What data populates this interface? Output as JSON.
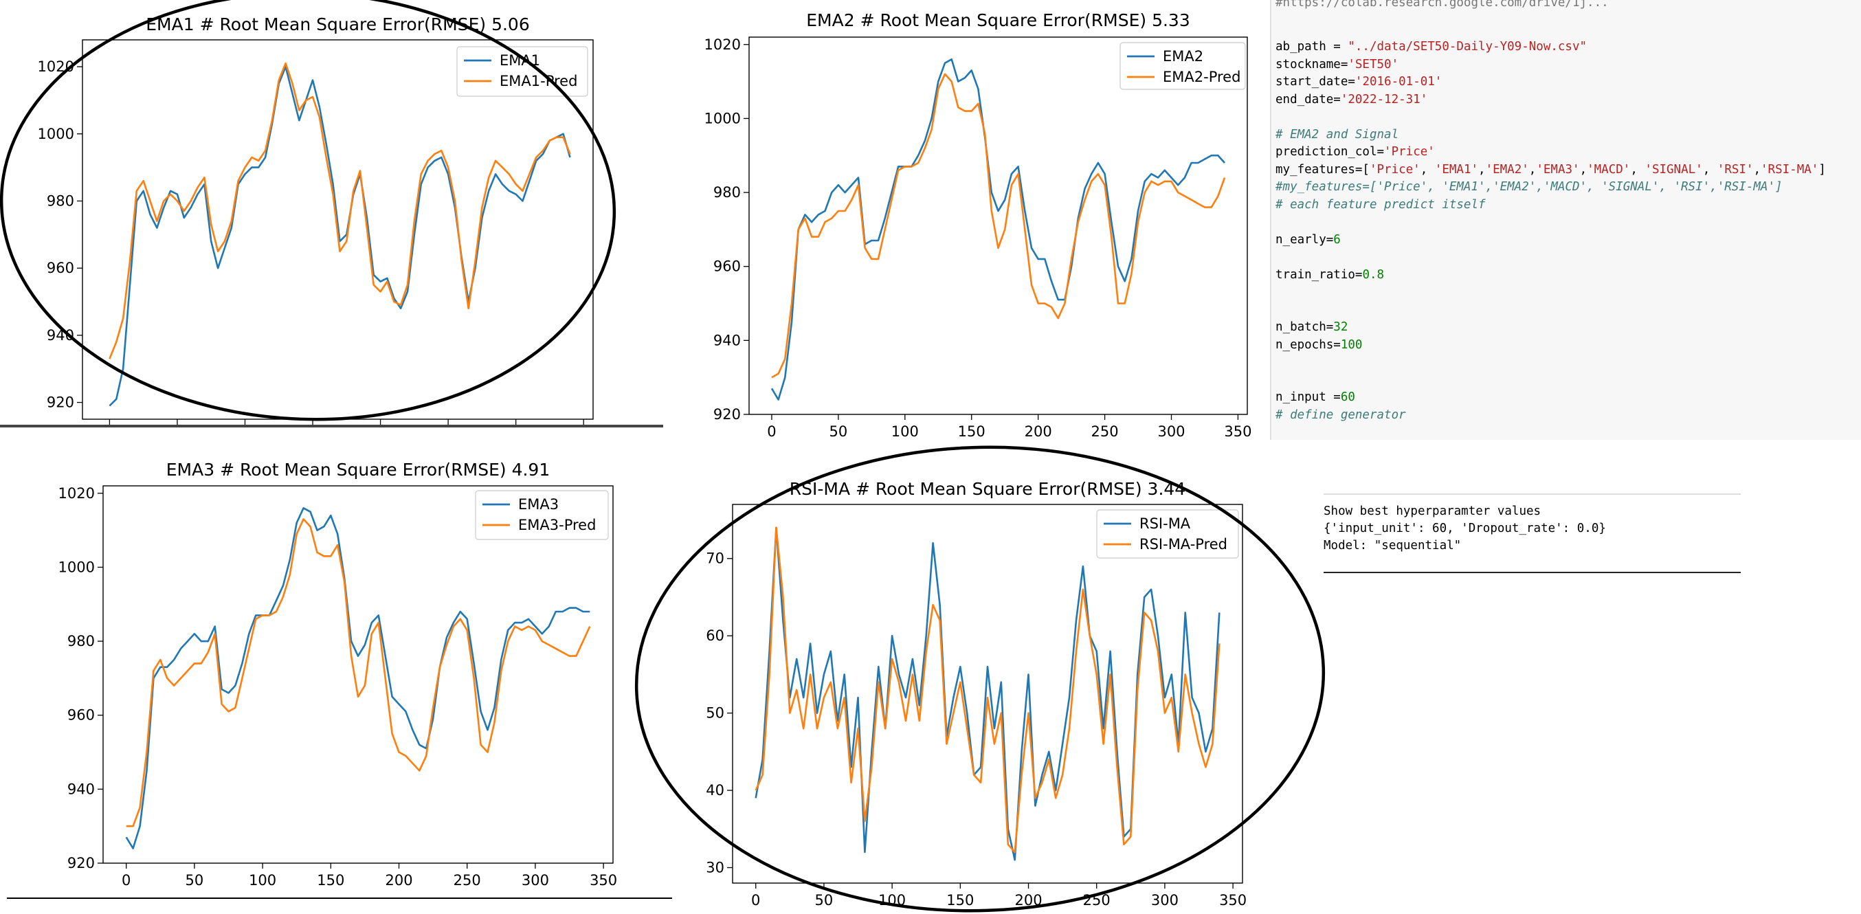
{
  "chart_data": [
    {
      "type": "line",
      "title": "EMA1 # Root Mean Square Error(RMSE) 5.06",
      "x": [
        0,
        5,
        10,
        15,
        20,
        25,
        30,
        35,
        40,
        45,
        50,
        55,
        60,
        65,
        70,
        75,
        80,
        85,
        90,
        95,
        100,
        105,
        110,
        115,
        120,
        125,
        130,
        135,
        140,
        145,
        150,
        155,
        160,
        165,
        170,
        175,
        180,
        185,
        190,
        195,
        200,
        205,
        210,
        215,
        220,
        225,
        230,
        235,
        240,
        245,
        250,
        255,
        260,
        265,
        270,
        275,
        280,
        285,
        290,
        295,
        300,
        305,
        310,
        315,
        320,
        325,
        330,
        335,
        340
      ],
      "series": [
        {
          "name": "EMA1",
          "color": "#1f77b4",
          "values": [
            919,
            921,
            930,
            955,
            980,
            983,
            976,
            972,
            978,
            983,
            982,
            975,
            978,
            982,
            985,
            968,
            960,
            966,
            972,
            985,
            988,
            990,
            990,
            993,
            1003,
            1015,
            1020,
            1012,
            1004,
            1010,
            1016,
            1008,
            997,
            985,
            968,
            970,
            982,
            988,
            975,
            958,
            956,
            957,
            951,
            948,
            953,
            970,
            985,
            990,
            992,
            993,
            988,
            978,
            963,
            950,
            960,
            975,
            983,
            988,
            985,
            983,
            982,
            980,
            986,
            992,
            994,
            998,
            999,
            1000,
            993
          ]
        },
        {
          "name": "EMA1-Pred",
          "color": "#ff7f0e",
          "values": [
            933,
            938,
            945,
            962,
            983,
            986,
            980,
            974,
            980,
            982,
            980,
            977,
            980,
            984,
            987,
            973,
            965,
            968,
            974,
            986,
            990,
            993,
            992,
            995,
            1004,
            1016,
            1021,
            1015,
            1007,
            1010,
            1011,
            1005,
            993,
            982,
            965,
            968,
            983,
            989,
            972,
            955,
            953,
            956,
            950,
            949,
            955,
            974,
            988,
            992,
            994,
            995,
            990,
            980,
            962,
            948,
            962,
            978,
            987,
            992,
            990,
            988,
            985,
            983,
            988,
            993,
            995,
            998,
            999,
            999,
            994
          ]
        }
      ],
      "xlim": [
        -20,
        357
      ],
      "ylim": [
        915,
        1028
      ],
      "yticks": [
        920,
        940,
        960,
        980,
        1000,
        1020
      ],
      "legend": "top-right"
    },
    {
      "type": "line",
      "title": "EMA2 # Root Mean Square Error(RMSE) 5.33",
      "x": [
        0,
        5,
        10,
        15,
        20,
        25,
        30,
        35,
        40,
        45,
        50,
        55,
        60,
        65,
        70,
        75,
        80,
        85,
        90,
        95,
        100,
        105,
        110,
        115,
        120,
        125,
        130,
        135,
        140,
        145,
        150,
        155,
        160,
        165,
        170,
        175,
        180,
        185,
        190,
        195,
        200,
        205,
        210,
        215,
        220,
        225,
        230,
        235,
        240,
        245,
        250,
        255,
        260,
        265,
        270,
        275,
        280,
        285,
        290,
        295,
        300,
        305,
        310,
        315,
        320,
        325,
        330,
        335,
        340
      ],
      "series": [
        {
          "name": "EMA2",
          "color": "#1f77b4",
          "values": [
            927,
            924,
            930,
            945,
            970,
            974,
            972,
            974,
            975,
            980,
            982,
            980,
            982,
            984,
            966,
            967,
            967,
            973,
            980,
            987,
            987,
            987,
            990,
            994,
            1000,
            1010,
            1015,
            1016,
            1010,
            1011,
            1013,
            1008,
            995,
            980,
            975,
            978,
            985,
            987,
            975,
            965,
            962,
            962,
            956,
            951,
            951,
            960,
            973,
            981,
            985,
            988,
            985,
            972,
            960,
            956,
            962,
            975,
            983,
            985,
            984,
            986,
            984,
            982,
            984,
            988,
            988,
            989,
            990,
            990,
            988
          ]
        },
        {
          "name": "EMA2-Pred",
          "color": "#ff7f0e",
          "values": [
            930,
            931,
            935,
            950,
            970,
            973,
            968,
            968,
            972,
            973,
            975,
            975,
            978,
            982,
            965,
            962,
            962,
            970,
            978,
            986,
            987,
            987,
            988,
            992,
            997,
            1008,
            1012,
            1010,
            1003,
            1002,
            1002,
            1004,
            996,
            975,
            965,
            970,
            982,
            985,
            970,
            955,
            950,
            950,
            949,
            946,
            950,
            962,
            972,
            978,
            983,
            985,
            982,
            968,
            950,
            950,
            958,
            972,
            980,
            983,
            982,
            983,
            983,
            980,
            979,
            978,
            977,
            976,
            976,
            979,
            984
          ]
        }
      ],
      "xlim": [
        -17,
        357
      ],
      "ylim": [
        920,
        1022
      ],
      "xticks": [
        0,
        50,
        100,
        150,
        200,
        250,
        300,
        350
      ],
      "yticks": [
        920,
        940,
        960,
        980,
        1000,
        1020
      ],
      "legend": "top-right"
    },
    {
      "type": "line",
      "title": "EMA3 # Root Mean Square Error(RMSE) 4.91",
      "x": [
        0,
        5,
        10,
        15,
        20,
        25,
        30,
        35,
        40,
        45,
        50,
        55,
        60,
        65,
        70,
        75,
        80,
        85,
        90,
        95,
        100,
        105,
        110,
        115,
        120,
        125,
        130,
        135,
        140,
        145,
        150,
        155,
        160,
        165,
        170,
        175,
        180,
        185,
        190,
        195,
        200,
        205,
        210,
        215,
        220,
        225,
        230,
        235,
        240,
        245,
        250,
        255,
        260,
        265,
        270,
        275,
        280,
        285,
        290,
        295,
        300,
        305,
        310,
        315,
        320,
        325,
        330,
        335,
        340
      ],
      "series": [
        {
          "name": "EMA3",
          "color": "#1f77b4",
          "values": [
            927,
            924,
            930,
            945,
            970,
            973,
            973,
            975,
            978,
            980,
            982,
            980,
            980,
            984,
            967,
            966,
            968,
            974,
            982,
            987,
            987,
            987,
            991,
            995,
            1002,
            1012,
            1016,
            1015,
            1010,
            1011,
            1014,
            1009,
            997,
            980,
            976,
            979,
            985,
            987,
            976,
            965,
            963,
            961,
            956,
            952,
            951,
            959,
            973,
            981,
            985,
            988,
            986,
            974,
            961,
            956,
            962,
            975,
            983,
            985,
            985,
            986,
            984,
            982,
            984,
            988,
            988,
            989,
            989,
            988,
            988
          ]
        },
        {
          "name": "EMA3-Pred",
          "color": "#ff7f0e",
          "values": [
            930,
            930,
            935,
            950,
            972,
            975,
            970,
            968,
            970,
            972,
            974,
            974,
            977,
            982,
            963,
            961,
            962,
            970,
            978,
            986,
            987,
            987,
            988,
            992,
            998,
            1009,
            1013,
            1011,
            1004,
            1003,
            1003,
            1006,
            996,
            976,
            965,
            968,
            982,
            985,
            970,
            955,
            950,
            949,
            947,
            945,
            949,
            962,
            973,
            979,
            984,
            986,
            983,
            970,
            952,
            950,
            958,
            972,
            980,
            984,
            983,
            984,
            983,
            980,
            979,
            978,
            977,
            976,
            976,
            980,
            984
          ]
        }
      ],
      "xlim": [
        -17,
        357
      ],
      "ylim": [
        920,
        1022
      ],
      "xticks": [
        0,
        50,
        100,
        150,
        200,
        250,
        300,
        350
      ],
      "yticks": [
        920,
        940,
        960,
        980,
        1000,
        1020
      ],
      "legend": "top-right"
    },
    {
      "type": "line",
      "title": "RSI-MA # Root Mean Square Error(RMSE) 3.44",
      "x": [
        0,
        5,
        10,
        15,
        20,
        25,
        30,
        35,
        40,
        45,
        50,
        55,
        60,
        65,
        70,
        75,
        80,
        85,
        90,
        95,
        100,
        105,
        110,
        115,
        120,
        125,
        130,
        135,
        140,
        145,
        150,
        155,
        160,
        165,
        170,
        175,
        180,
        185,
        190,
        195,
        200,
        205,
        210,
        215,
        220,
        225,
        230,
        235,
        240,
        245,
        250,
        255,
        260,
        265,
        270,
        275,
        280,
        285,
        290,
        295,
        300,
        305,
        310,
        315,
        320,
        325,
        330,
        335,
        340
      ],
      "series": [
        {
          "name": "RSI-MA",
          "color": "#1f77b4",
          "values": [
            39,
            44,
            58,
            74,
            62,
            52,
            57,
            52,
            59,
            50,
            55,
            58,
            49,
            55,
            43,
            52,
            32,
            45,
            56,
            48,
            60,
            55,
            52,
            57,
            51,
            60,
            72,
            64,
            47,
            52,
            56,
            50,
            42,
            43,
            56,
            48,
            54,
            35,
            31,
            45,
            55,
            38,
            42,
            45,
            40,
            46,
            52,
            62,
            69,
            60,
            58,
            48,
            58,
            45,
            34,
            35,
            55,
            65,
            66,
            60,
            52,
            55,
            46,
            63,
            52,
            50,
            45,
            48,
            63
          ]
        },
        {
          "name": "RSI-MA-Pred",
          "color": "#ff7f0e",
          "values": [
            40,
            42,
            55,
            74,
            65,
            50,
            53,
            48,
            55,
            48,
            52,
            54,
            48,
            52,
            41,
            48,
            36,
            43,
            54,
            48,
            57,
            54,
            49,
            55,
            49,
            58,
            64,
            62,
            46,
            50,
            54,
            48,
            42,
            41,
            52,
            46,
            50,
            33,
            32,
            42,
            50,
            39,
            41,
            44,
            39,
            42,
            48,
            58,
            66,
            60,
            55,
            46,
            55,
            43,
            33,
            34,
            53,
            63,
            62,
            58,
            50,
            52,
            45,
            55,
            50,
            46,
            43,
            46,
            59
          ]
        }
      ],
      "xlim": [
        -17,
        357
      ],
      "ylim": [
        28,
        77
      ],
      "xticks": [
        0,
        50,
        100,
        150,
        200,
        250,
        300,
        350
      ],
      "yticks": [
        30,
        40,
        50,
        60,
        70
      ],
      "legend": "top-right"
    }
  ],
  "code": {
    "top_cutoff": "#https://colab.research.google.com/drive/1j...",
    "lines": [
      "ab_path = \"../data/SET50-Daily-Y09-Now.csv\"",
      "stockname='SET50'",
      "start_date='2016-01-01'",
      "end_date='2022-12-31'",
      "",
      "# EMA2 and Signal",
      "prediction_col='Price'",
      "my_features=['Price', 'EMA1','EMA2','EMA3','MACD', 'SIGNAL', 'RSI','RSI-MA']",
      "#my_features=['Price', 'EMA1','EMA2','MACD', 'SIGNAL', 'RSI','RSI-MA']",
      "# each feature predict itself",
      "",
      "n_early=6",
      "",
      "train_ratio=0.8",
      "",
      "",
      "n_batch=32",
      "n_epochs=100",
      "",
      "",
      "n_input =60",
      "# define generator"
    ]
  },
  "output": {
    "lines": [
      "Show best hyperparamter values",
      "{'input_unit': 60, 'Dropout_rate': 0.0}",
      "Model: \"sequential\""
    ]
  }
}
